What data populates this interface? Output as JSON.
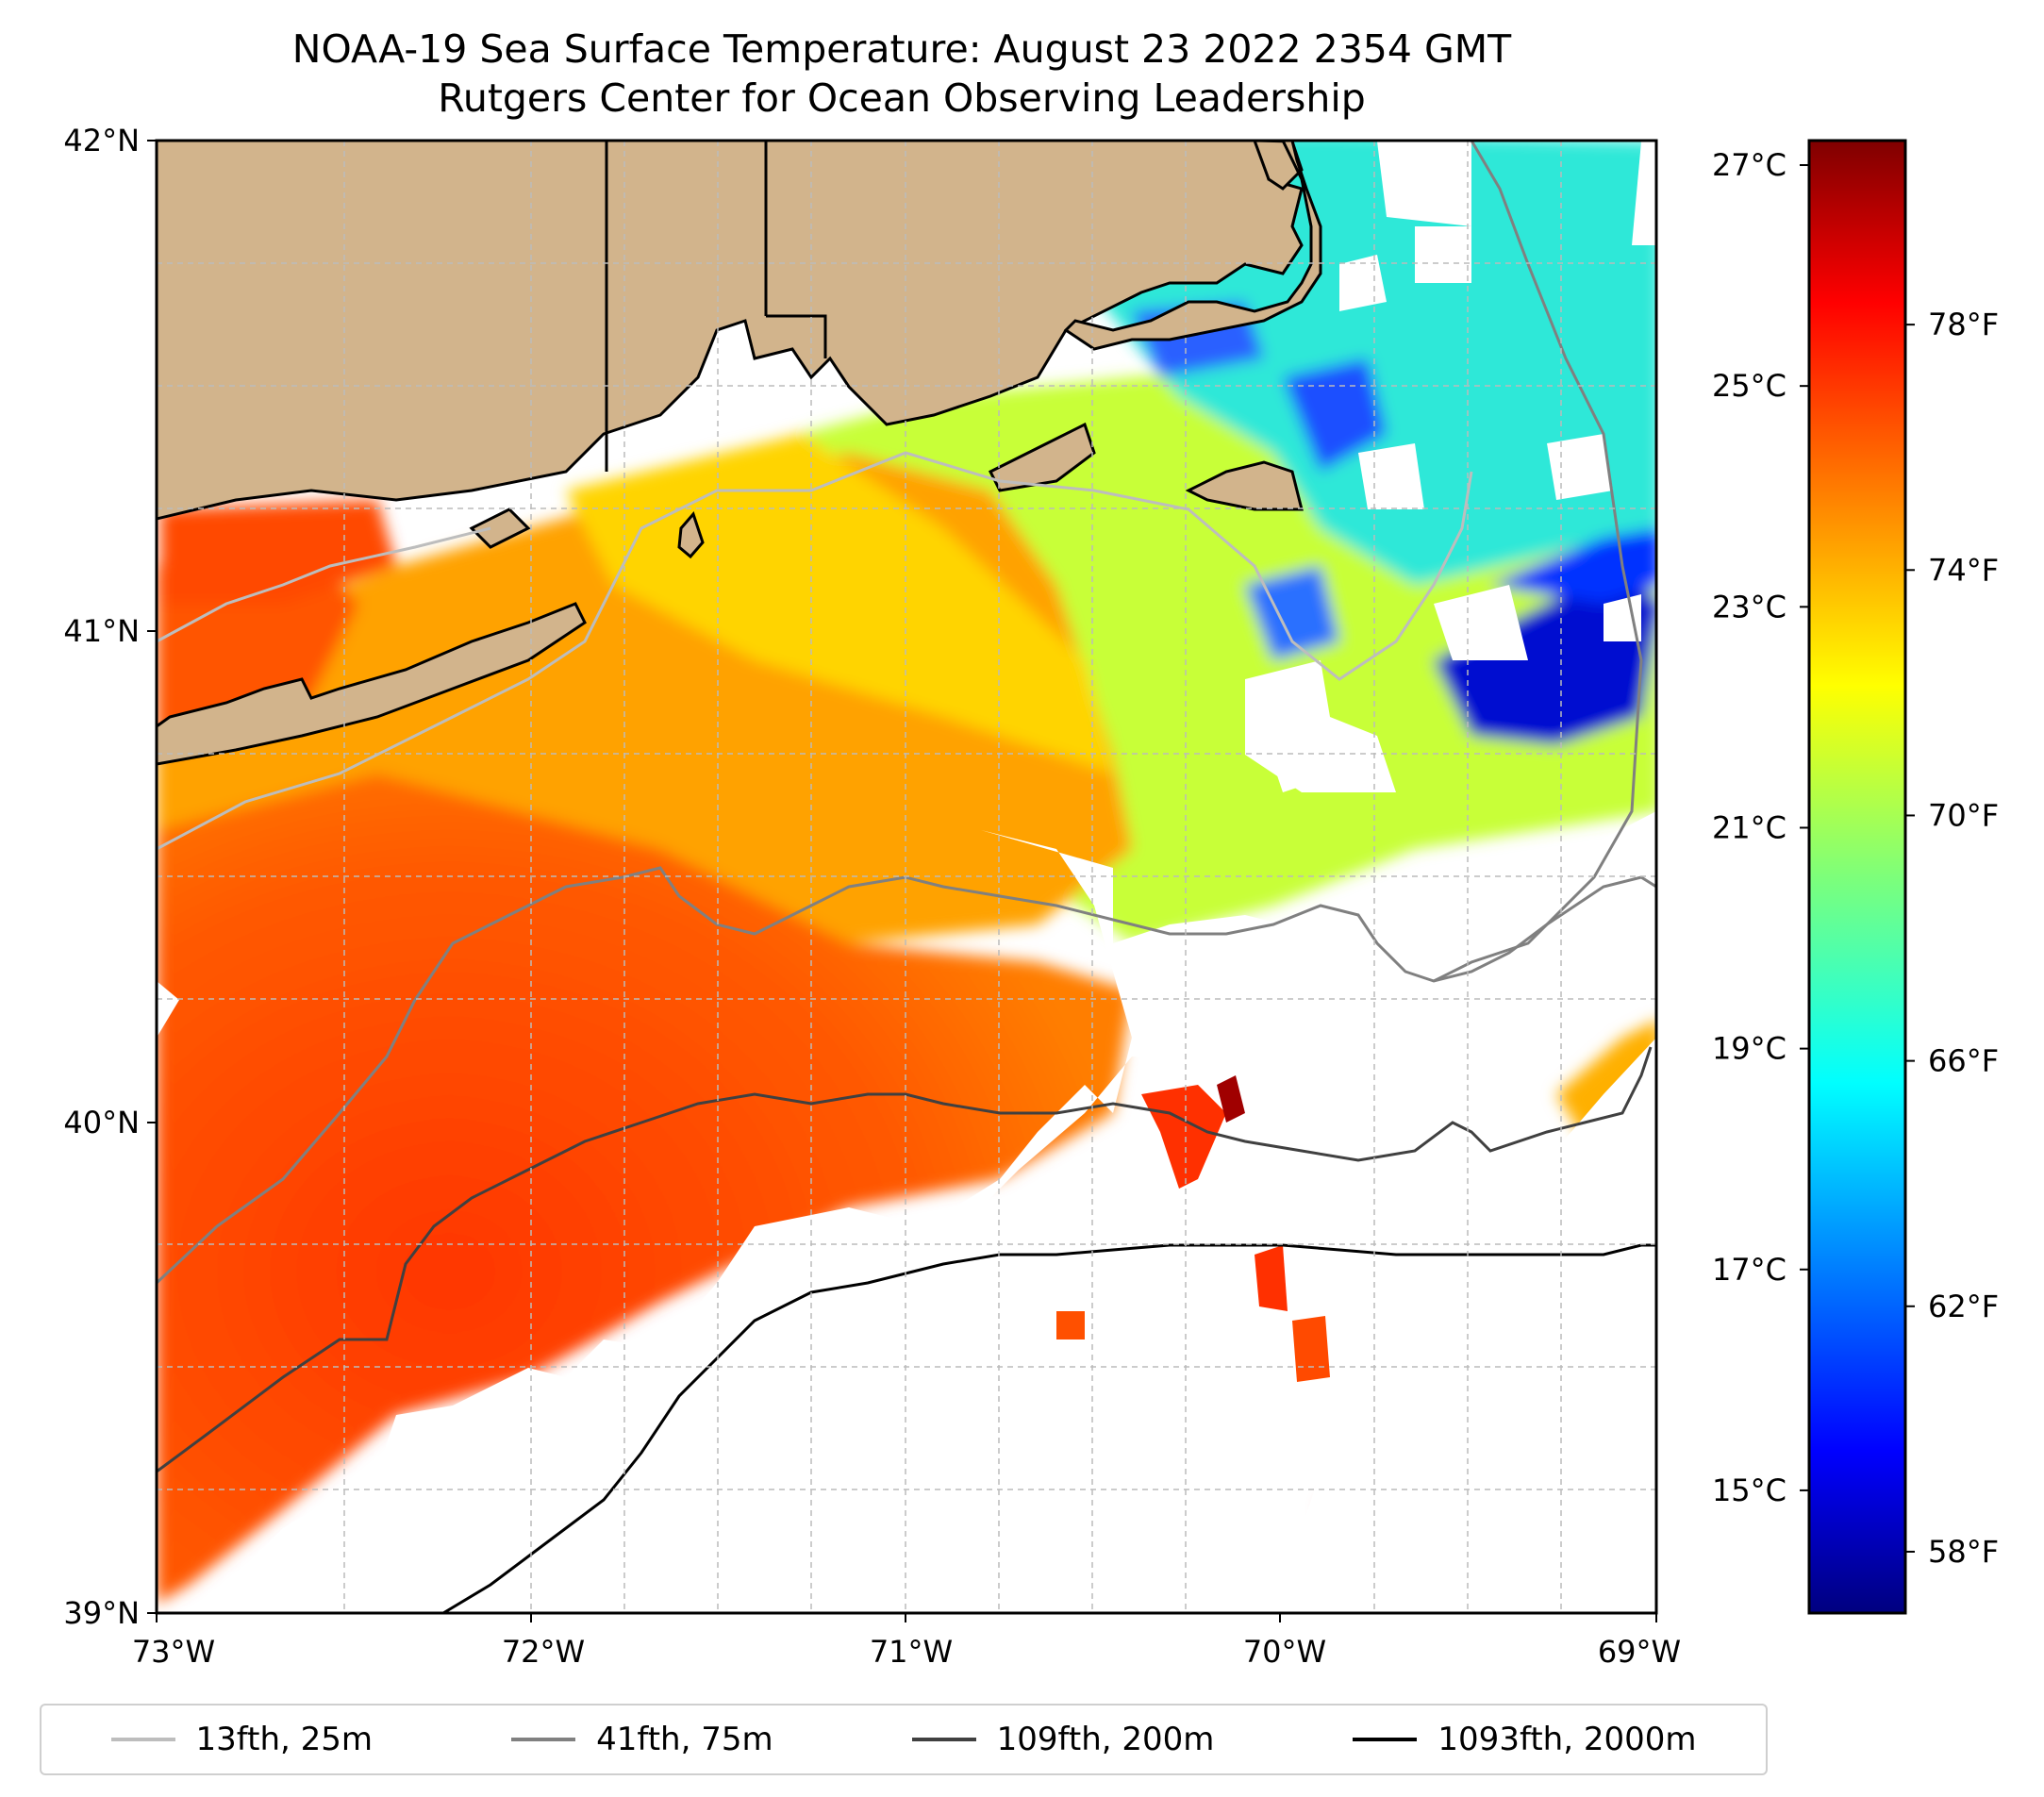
{
  "title": {
    "line1": "NOAA-19 Sea Surface Temperature: August 23 2022 2354 GMT",
    "line2": "Rutgers Center for Ocean Observing Leadership"
  },
  "map": {
    "lat_labels": [
      "42°N",
      "41°N",
      "40°N",
      "39°N"
    ],
    "lon_labels": [
      "73°W",
      "72°W",
      "71°W",
      "70°W",
      "69°W"
    ],
    "lat_range": [
      39,
      42
    ],
    "lon_range": [
      -73,
      -69
    ],
    "colors": {
      "land": "#d2b48c",
      "nodata": "#ffffff",
      "warm": "#ff3a00",
      "mid": "#ffa400",
      "cool": "#c8ff37",
      "cold": "#10e8ff",
      "coldest": "#0008d8"
    }
  },
  "colorbar": {
    "celsius_labels": [
      "27°C",
      "25°C",
      "23°C",
      "21°C",
      "19°C",
      "17°C",
      "15°C"
    ],
    "fahrenheit_labels": [
      "78°F",
      "74°F",
      "70°F",
      "66°F",
      "62°F",
      "58°F"
    ],
    "celsius_values": [
      27,
      25,
      23,
      21,
      19,
      17,
      15
    ],
    "fahrenheit_values": [
      78,
      74,
      70,
      66,
      62,
      58
    ],
    "range_f": [
      57,
      81
    ],
    "colormap": "jet"
  },
  "legend": {
    "items": [
      {
        "label": "13fth, 25m",
        "color": "#bdbdbd"
      },
      {
        "label": "41fth, 75m",
        "color": "#808080"
      },
      {
        "label": "109fth, 200m",
        "color": "#404040"
      },
      {
        "label": "1093fth, 2000m",
        "color": "#000000"
      }
    ]
  }
}
